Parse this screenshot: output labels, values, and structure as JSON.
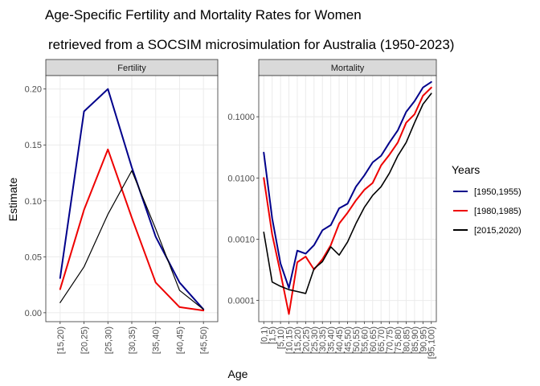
{
  "title_line1": "Age-Specific Fertility and Mortality Rates for Women",
  "title_line2": "retrieved from a SOCSIM microsimulation for Australia (1950-2023)",
  "xlabel": "Age",
  "ylabel": "Estimate",
  "legend": {
    "title": "Years",
    "placement": "right",
    "items": [
      {
        "label": "[1950,1955)",
        "color": "#00008B"
      },
      {
        "label": "[1980,1985)",
        "color": "#EE0000"
      },
      {
        "label": "[2015,2020)",
        "color": "#000000"
      }
    ]
  },
  "chart_data": [
    {
      "type": "line",
      "facet": "Fertility",
      "scale": "linear",
      "grid": true,
      "ylim": [
        -0.008,
        0.212
      ],
      "yticks": [
        0.0,
        0.05,
        0.1,
        0.15,
        0.2
      ],
      "ytick_labels": [
        "0.00",
        "0.05",
        "0.10",
        "0.15",
        "0.20"
      ],
      "categories": [
        "[15,20)",
        "[20,25)",
        "[25,30)",
        "[30,35)",
        "[35,40)",
        "[40,45)",
        "[45,50)"
      ],
      "series": [
        {
          "name": "[1950,1955)",
          "color": "#00008B",
          "values": [
            0.031,
            0.18,
            0.2,
            0.13,
            0.068,
            0.027,
            0.003
          ]
        },
        {
          "name": "[1980,1985)",
          "color": "#EE0000",
          "values": [
            0.021,
            0.092,
            0.146,
            0.085,
            0.027,
            0.005,
            0.002
          ]
        },
        {
          "name": "[2015,2020)",
          "color": "#000000",
          "values": [
            0.009,
            0.041,
            0.088,
            0.127,
            0.075,
            0.02,
            0.003
          ]
        }
      ]
    },
    {
      "type": "line",
      "facet": "Mortality",
      "scale": "log10",
      "grid": true,
      "ylim": [
        4.5e-05,
        0.47
      ],
      "yticks": [
        0.0001,
        0.001,
        0.01,
        0.1
      ],
      "ytick_labels": [
        "0.0001",
        "0.0010",
        "0.0100",
        "0.1000"
      ],
      "categories": [
        "[0,1)",
        "[1,5)",
        "[5,10)",
        "[10,15)",
        "[15,20)",
        "[20,25)",
        "[25,30)",
        "[30,35)",
        "[35,40)",
        "[40,45)",
        "[45,50)",
        "[50,55)",
        "[55,60)",
        "[60,65)",
        "[65,70)",
        "[70,75)",
        "[75,80)",
        "[80,85)",
        "[85,90)",
        "[90,95)",
        "[95,100)"
      ],
      "series": [
        {
          "name": "[1950,1955)",
          "color": "#00008B",
          "values": [
            0.026,
            0.0022,
            0.0004,
            0.00016,
            0.00065,
            0.00058,
            0.0008,
            0.0014,
            0.0017,
            0.0032,
            0.0038,
            0.0072,
            0.011,
            0.018,
            0.023,
            0.038,
            0.06,
            0.12,
            0.18,
            0.3,
            0.37
          ]
        },
        {
          "name": "[1980,1985)",
          "color": "#EE0000",
          "values": [
            0.01,
            0.0012,
            0.00028,
            6e-05,
            0.00042,
            0.00052,
            0.00032,
            0.00047,
            0.0008,
            0.0018,
            0.0027,
            0.0043,
            0.0064,
            0.0083,
            0.016,
            0.024,
            0.038,
            0.08,
            0.11,
            0.22,
            0.3
          ]
        },
        {
          "name": "[2015,2020)",
          "color": "#000000",
          "values": [
            0.0013,
            0.0002,
            0.00017,
            0.00015,
            0.00014,
            0.00013,
            0.00033,
            0.00043,
            0.00075,
            0.00055,
            0.0009,
            0.0018,
            0.0033,
            0.0052,
            0.0072,
            0.012,
            0.023,
            0.038,
            0.08,
            0.16,
            0.24
          ]
        }
      ]
    }
  ]
}
